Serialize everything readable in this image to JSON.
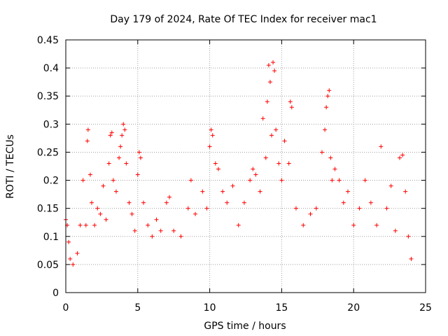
{
  "chart_data": {
    "type": "scatter",
    "title": "Day 179 of 2024, Rate Of TEC Index for receiver mac1",
    "xlabel": "GPS time / hours",
    "ylabel": "ROTI / TECUs",
    "xlim": [
      0,
      25
    ],
    "ylim": [
      0,
      0.45
    ],
    "x_ticks": [
      0,
      5,
      10,
      15,
      20,
      25
    ],
    "x_tick_labels": [
      "0",
      "5",
      "10",
      "15",
      "20",
      "25"
    ],
    "y_ticks": [
      0,
      0.05,
      0.1,
      0.15,
      0.2,
      0.25,
      0.3,
      0.35,
      0.4,
      0.45
    ],
    "y_tick_labels": [
      "0",
      "0.05",
      "0.1",
      "0.15",
      "0.2",
      "0.25",
      "0.3",
      "0.35",
      "0.4",
      "0.45"
    ],
    "grid": true,
    "marker": "plus",
    "marker_color": "#ff0000",
    "series": [
      {
        "points": [
          [
            0.0,
            0.13
          ],
          [
            0.1,
            0.12
          ],
          [
            0.2,
            0.09
          ],
          [
            0.3,
            0.06
          ],
          [
            0.5,
            0.05
          ],
          [
            0.8,
            0.07
          ],
          [
            1.0,
            0.12
          ],
          [
            1.2,
            0.2
          ],
          [
            1.4,
            0.12
          ],
          [
            1.5,
            0.27
          ],
          [
            1.55,
            0.29
          ],
          [
            1.7,
            0.21
          ],
          [
            1.8,
            0.16
          ],
          [
            2.0,
            0.12
          ],
          [
            2.2,
            0.15
          ],
          [
            2.4,
            0.14
          ],
          [
            2.6,
            0.19
          ],
          [
            2.8,
            0.13
          ],
          [
            3.0,
            0.23
          ],
          [
            3.1,
            0.28
          ],
          [
            3.2,
            0.285
          ],
          [
            3.3,
            0.2
          ],
          [
            3.5,
            0.18
          ],
          [
            3.7,
            0.24
          ],
          [
            3.8,
            0.26
          ],
          [
            3.9,
            0.28
          ],
          [
            4.0,
            0.3
          ],
          [
            4.1,
            0.29
          ],
          [
            4.2,
            0.23
          ],
          [
            4.4,
            0.16
          ],
          [
            4.6,
            0.14
          ],
          [
            4.8,
            0.11
          ],
          [
            5.0,
            0.21
          ],
          [
            5.1,
            0.25
          ],
          [
            5.2,
            0.24
          ],
          [
            5.4,
            0.16
          ],
          [
            5.7,
            0.12
          ],
          [
            6.0,
            0.1
          ],
          [
            6.3,
            0.13
          ],
          [
            6.6,
            0.11
          ],
          [
            7.0,
            0.16
          ],
          [
            7.2,
            0.17
          ],
          [
            7.5,
            0.11
          ],
          [
            8.0,
            0.1
          ],
          [
            8.5,
            0.15
          ],
          [
            8.7,
            0.2
          ],
          [
            9.0,
            0.14
          ],
          [
            9.5,
            0.18
          ],
          [
            9.8,
            0.15
          ],
          [
            10.0,
            0.26
          ],
          [
            10.1,
            0.29
          ],
          [
            10.2,
            0.28
          ],
          [
            10.4,
            0.23
          ],
          [
            10.6,
            0.22
          ],
          [
            10.9,
            0.18
          ],
          [
            11.2,
            0.16
          ],
          [
            11.6,
            0.19
          ],
          [
            12.0,
            0.12
          ],
          [
            12.4,
            0.16
          ],
          [
            12.8,
            0.2
          ],
          [
            13.0,
            0.22
          ],
          [
            13.2,
            0.21
          ],
          [
            13.5,
            0.18
          ],
          [
            13.7,
            0.31
          ],
          [
            13.9,
            0.24
          ],
          [
            14.0,
            0.34
          ],
          [
            14.1,
            0.405
          ],
          [
            14.2,
            0.375
          ],
          [
            14.3,
            0.28
          ],
          [
            14.4,
            0.41
          ],
          [
            14.5,
            0.395
          ],
          [
            14.6,
            0.29
          ],
          [
            14.8,
            0.23
          ],
          [
            15.0,
            0.2
          ],
          [
            15.2,
            0.27
          ],
          [
            15.5,
            0.23
          ],
          [
            15.6,
            0.34
          ],
          [
            15.7,
            0.33
          ],
          [
            16.0,
            0.15
          ],
          [
            16.5,
            0.12
          ],
          [
            17.0,
            0.14
          ],
          [
            17.4,
            0.15
          ],
          [
            17.8,
            0.25
          ],
          [
            18.0,
            0.29
          ],
          [
            18.1,
            0.33
          ],
          [
            18.2,
            0.35
          ],
          [
            18.3,
            0.36
          ],
          [
            18.4,
            0.24
          ],
          [
            18.5,
            0.2
          ],
          [
            18.7,
            0.22
          ],
          [
            19.0,
            0.2
          ],
          [
            19.3,
            0.16
          ],
          [
            19.6,
            0.18
          ],
          [
            20.0,
            0.12
          ],
          [
            20.4,
            0.15
          ],
          [
            20.8,
            0.2
          ],
          [
            21.2,
            0.16
          ],
          [
            21.6,
            0.12
          ],
          [
            21.9,
            0.26
          ],
          [
            22.3,
            0.15
          ],
          [
            22.6,
            0.19
          ],
          [
            22.9,
            0.11
          ],
          [
            23.2,
            0.24
          ],
          [
            23.4,
            0.245
          ],
          [
            23.6,
            0.18
          ],
          [
            23.8,
            0.1
          ],
          [
            24.0,
            0.06
          ]
        ]
      }
    ]
  }
}
